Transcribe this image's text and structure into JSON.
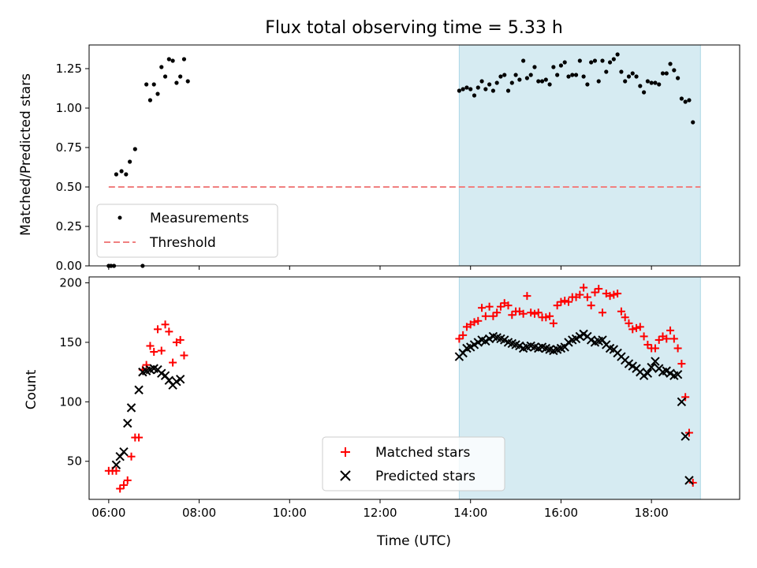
{
  "chart_data": [
    {
      "type": "scatter",
      "title": "Flux total observing time = 5.33 h",
      "ylabel": "Matched/Predicted stars",
      "xlim": [
        "05:34",
        "19:57"
      ],
      "ylim": [
        0,
        1.4
      ],
      "xticks": [
        "06:00",
        "08:00",
        "10:00",
        "12:00",
        "14:00",
        "16:00",
        "18:00"
      ],
      "yticks": [
        "0.00",
        "0.25",
        "0.50",
        "0.75",
        "1.00",
        "1.25"
      ],
      "shaded_span": [
        "13:45",
        "19:05"
      ],
      "series": [
        {
          "name": "Measurements",
          "color": "#000000",
          "marker": "dot",
          "points": [
            [
              "06:00",
              0.0
            ],
            [
              "06:03",
              0.0
            ],
            [
              "06:07",
              0.0
            ],
            [
              "06:45",
              0.0
            ],
            [
              "06:10",
              0.58
            ],
            [
              "06:17",
              0.6
            ],
            [
              "06:23",
              0.58
            ],
            [
              "06:28",
              0.66
            ],
            [
              "06:35",
              0.74
            ],
            [
              "06:50",
              1.15
            ],
            [
              "06:55",
              1.05
            ],
            [
              "07:00",
              1.15
            ],
            [
              "07:05",
              1.09
            ],
            [
              "07:10",
              1.26
            ],
            [
              "07:15",
              1.2
            ],
            [
              "07:20",
              1.31
            ],
            [
              "07:25",
              1.3
            ],
            [
              "07:30",
              1.16
            ],
            [
              "07:35",
              1.2
            ],
            [
              "07:40",
              1.31
            ],
            [
              "07:45",
              1.17
            ],
            [
              "13:45",
              1.11
            ],
            [
              "13:50",
              1.12
            ],
            [
              "13:55",
              1.13
            ],
            [
              "14:00",
              1.12
            ],
            [
              "14:05",
              1.08
            ],
            [
              "14:10",
              1.13
            ],
            [
              "14:15",
              1.17
            ],
            [
              "14:20",
              1.12
            ],
            [
              "14:25",
              1.15
            ],
            [
              "14:30",
              1.11
            ],
            [
              "14:35",
              1.16
            ],
            [
              "14:40",
              1.2
            ],
            [
              "14:45",
              1.21
            ],
            [
              "14:50",
              1.11
            ],
            [
              "14:55",
              1.16
            ],
            [
              "15:00",
              1.21
            ],
            [
              "15:05",
              1.18
            ],
            [
              "15:10",
              1.3
            ],
            [
              "15:15",
              1.19
            ],
            [
              "15:20",
              1.21
            ],
            [
              "15:25",
              1.26
            ],
            [
              "15:30",
              1.17
            ],
            [
              "15:35",
              1.17
            ],
            [
              "15:40",
              1.18
            ],
            [
              "15:45",
              1.15
            ],
            [
              "15:50",
              1.26
            ],
            [
              "15:55",
              1.21
            ],
            [
              "16:00",
              1.27
            ],
            [
              "16:05",
              1.29
            ],
            [
              "16:10",
              1.2
            ],
            [
              "16:15",
              1.21
            ],
            [
              "16:20",
              1.21
            ],
            [
              "16:25",
              1.3
            ],
            [
              "16:30",
              1.2
            ],
            [
              "16:35",
              1.15
            ],
            [
              "16:40",
              1.29
            ],
            [
              "16:45",
              1.3
            ],
            [
              "16:50",
              1.17
            ],
            [
              "16:55",
              1.3
            ],
            [
              "17:00",
              1.23
            ],
            [
              "17:05",
              1.29
            ],
            [
              "17:10",
              1.31
            ],
            [
              "17:15",
              1.34
            ],
            [
              "17:20",
              1.23
            ],
            [
              "17:25",
              1.17
            ],
            [
              "17:30",
              1.2
            ],
            [
              "17:35",
              1.22
            ],
            [
              "17:40",
              1.2
            ],
            [
              "17:45",
              1.14
            ],
            [
              "17:50",
              1.1
            ],
            [
              "17:55",
              1.17
            ],
            [
              "18:00",
              1.16
            ],
            [
              "18:05",
              1.16
            ],
            [
              "18:10",
              1.15
            ],
            [
              "18:15",
              1.22
            ],
            [
              "18:20",
              1.22
            ],
            [
              "18:25",
              1.28
            ],
            [
              "18:30",
              1.24
            ],
            [
              "18:35",
              1.19
            ],
            [
              "18:40",
              1.06
            ],
            [
              "18:45",
              1.04
            ],
            [
              "18:50",
              1.05
            ],
            [
              "18:55",
              0.91
            ]
          ]
        },
        {
          "name": "Threshold",
          "color": "#f08080",
          "line": "dashed",
          "points": [
            [
              "06:00",
              0.5
            ],
            [
              "19:05",
              0.5
            ]
          ]
        }
      ],
      "legend": "lower-left"
    },
    {
      "type": "scatter",
      "xlabel": "Time (UTC)",
      "ylabel": "Count",
      "xlim": [
        "05:34",
        "19:57"
      ],
      "ylim": [
        18,
        205
      ],
      "xticks": [
        "06:00",
        "08:00",
        "10:00",
        "12:00",
        "14:00",
        "16:00",
        "18:00"
      ],
      "yticks": [
        "50",
        "100",
        "150",
        "200"
      ],
      "shaded_span": [
        "13:45",
        "19:05"
      ],
      "series": [
        {
          "name": "Matched stars",
          "color": "#ff0000",
          "marker": "plus",
          "points": [
            [
              "06:00",
              42
            ],
            [
              "06:05",
              42
            ],
            [
              "06:10",
              42
            ],
            [
              "06:15",
              27
            ],
            [
              "06:20",
              30
            ],
            [
              "06:25",
              34
            ],
            [
              "06:30",
              54
            ],
            [
              "06:35",
              70
            ],
            [
              "06:40",
              70
            ],
            [
              "06:45",
              127
            ],
            [
              "06:50",
              131
            ],
            [
              "06:55",
              147
            ],
            [
              "07:00",
              142
            ],
            [
              "07:05",
              161
            ],
            [
              "07:10",
              143
            ],
            [
              "07:15",
              165
            ],
            [
              "07:20",
              159
            ],
            [
              "07:25",
              133
            ],
            [
              "07:30",
              150
            ],
            [
              "07:35",
              152
            ],
            [
              "07:40",
              139
            ],
            [
              "13:45",
              153
            ],
            [
              "13:50",
              156
            ],
            [
              "13:55",
              163
            ],
            [
              "14:00",
              165
            ],
            [
              "14:05",
              167
            ],
            [
              "14:10",
              168
            ],
            [
              "14:15",
              179
            ],
            [
              "14:20",
              172
            ],
            [
              "14:25",
              180
            ],
            [
              "14:30",
              172
            ],
            [
              "14:35",
              175
            ],
            [
              "14:40",
              180
            ],
            [
              "14:45",
              183
            ],
            [
              "14:50",
              181
            ],
            [
              "14:55",
              173
            ],
            [
              "15:00",
              176
            ],
            [
              "15:05",
              176
            ],
            [
              "15:10",
              174
            ],
            [
              "15:15",
              189
            ],
            [
              "15:20",
              175
            ],
            [
              "15:25",
              174
            ],
            [
              "15:30",
              175
            ],
            [
              "15:35",
              171
            ],
            [
              "15:40",
              171
            ],
            [
              "15:45",
              172
            ],
            [
              "15:50",
              166
            ],
            [
              "15:55",
              181
            ],
            [
              "16:00",
              184
            ],
            [
              "16:05",
              185
            ],
            [
              "16:10",
              184
            ],
            [
              "16:15",
              188
            ],
            [
              "16:20",
              188
            ],
            [
              "16:25",
              190
            ],
            [
              "16:30",
              196
            ],
            [
              "16:35",
              188
            ],
            [
              "16:40",
              181
            ],
            [
              "16:45",
              192
            ],
            [
              "16:50",
              195
            ],
            [
              "16:55",
              175
            ],
            [
              "17:00",
              191
            ],
            [
              "17:05",
              189
            ],
            [
              "17:10",
              190
            ],
            [
              "17:15",
              191
            ],
            [
              "17:20",
              176
            ],
            [
              "17:25",
              171
            ],
            [
              "17:30",
              166
            ],
            [
              "17:35",
              161
            ],
            [
              "17:40",
              162
            ],
            [
              "17:45",
              163
            ],
            [
              "17:50",
              155
            ],
            [
              "17:55",
              148
            ],
            [
              "18:00",
              145
            ],
            [
              "18:05",
              145
            ],
            [
              "18:10",
              152
            ],
            [
              "18:15",
              155
            ],
            [
              "18:20",
              153
            ],
            [
              "18:25",
              160
            ],
            [
              "18:30",
              153
            ],
            [
              "18:35",
              145
            ],
            [
              "18:40",
              132
            ],
            [
              "18:45",
              104
            ],
            [
              "18:50",
              74
            ],
            [
              "18:55",
              32
            ]
          ]
        },
        {
          "name": "Predicted stars",
          "color": "#000000",
          "marker": "x",
          "points": [
            [
              "06:10",
              47
            ],
            [
              "06:15",
              54
            ],
            [
              "06:20",
              58
            ],
            [
              "06:25",
              82
            ],
            [
              "06:30",
              95
            ],
            [
              "06:40",
              110
            ],
            [
              "06:45",
              125
            ],
            [
              "06:50",
              126
            ],
            [
              "06:55",
              127
            ],
            [
              "07:00",
              128
            ],
            [
              "07:05",
              127
            ],
            [
              "07:10",
              124
            ],
            [
              "07:15",
              122
            ],
            [
              "07:20",
              118
            ],
            [
              "07:25",
              114
            ],
            [
              "07:30",
              117
            ],
            [
              "07:35",
              119
            ],
            [
              "13:45",
              138
            ],
            [
              "13:50",
              141
            ],
            [
              "13:55",
              145
            ],
            [
              "14:00",
              146
            ],
            [
              "14:05",
              148
            ],
            [
              "14:10",
              150
            ],
            [
              "14:15",
              152
            ],
            [
              "14:20",
              151
            ],
            [
              "14:25",
              153
            ],
            [
              "14:30",
              155
            ],
            [
              "14:35",
              154
            ],
            [
              "14:40",
              153
            ],
            [
              "14:45",
              152
            ],
            [
              "14:50",
              150
            ],
            [
              "14:55",
              149
            ],
            [
              "15:00",
              148
            ],
            [
              "15:05",
              147
            ],
            [
              "15:10",
              145
            ],
            [
              "15:15",
              146
            ],
            [
              "15:20",
              147
            ],
            [
              "15:25",
              146
            ],
            [
              "15:30",
              145
            ],
            [
              "15:35",
              146
            ],
            [
              "15:40",
              145
            ],
            [
              "15:45",
              144
            ],
            [
              "15:50",
              143
            ],
            [
              "15:55",
              144
            ],
            [
              "16:00",
              145
            ],
            [
              "16:05",
              146
            ],
            [
              "16:10",
              150
            ],
            [
              "16:15",
              152
            ],
            [
              "16:20",
              153
            ],
            [
              "16:25",
              155
            ],
            [
              "16:30",
              157
            ],
            [
              "16:35",
              155
            ],
            [
              "16:40",
              152
            ],
            [
              "16:45",
              150
            ],
            [
              "16:50",
              151
            ],
            [
              "16:55",
              152
            ],
            [
              "17:00",
              148
            ],
            [
              "17:05",
              145
            ],
            [
              "17:10",
              144
            ],
            [
              "17:15",
              141
            ],
            [
              "17:20",
              138
            ],
            [
              "17:25",
              135
            ],
            [
              "17:30",
              132
            ],
            [
              "17:35",
              130
            ],
            [
              "17:40",
              128
            ],
            [
              "17:45",
              125
            ],
            [
              "17:50",
              122
            ],
            [
              "17:55",
              124
            ],
            [
              "18:00",
              129
            ],
            [
              "18:05",
              134
            ],
            [
              "18:10",
              128
            ],
            [
              "18:15",
              125
            ],
            [
              "18:20",
              126
            ],
            [
              "18:25",
              124
            ],
            [
              "18:30",
              122
            ],
            [
              "18:35",
              123
            ],
            [
              "18:40",
              100
            ],
            [
              "18:45",
              71
            ],
            [
              "18:50",
              34
            ]
          ]
        }
      ],
      "legend": "lower-center"
    }
  ]
}
